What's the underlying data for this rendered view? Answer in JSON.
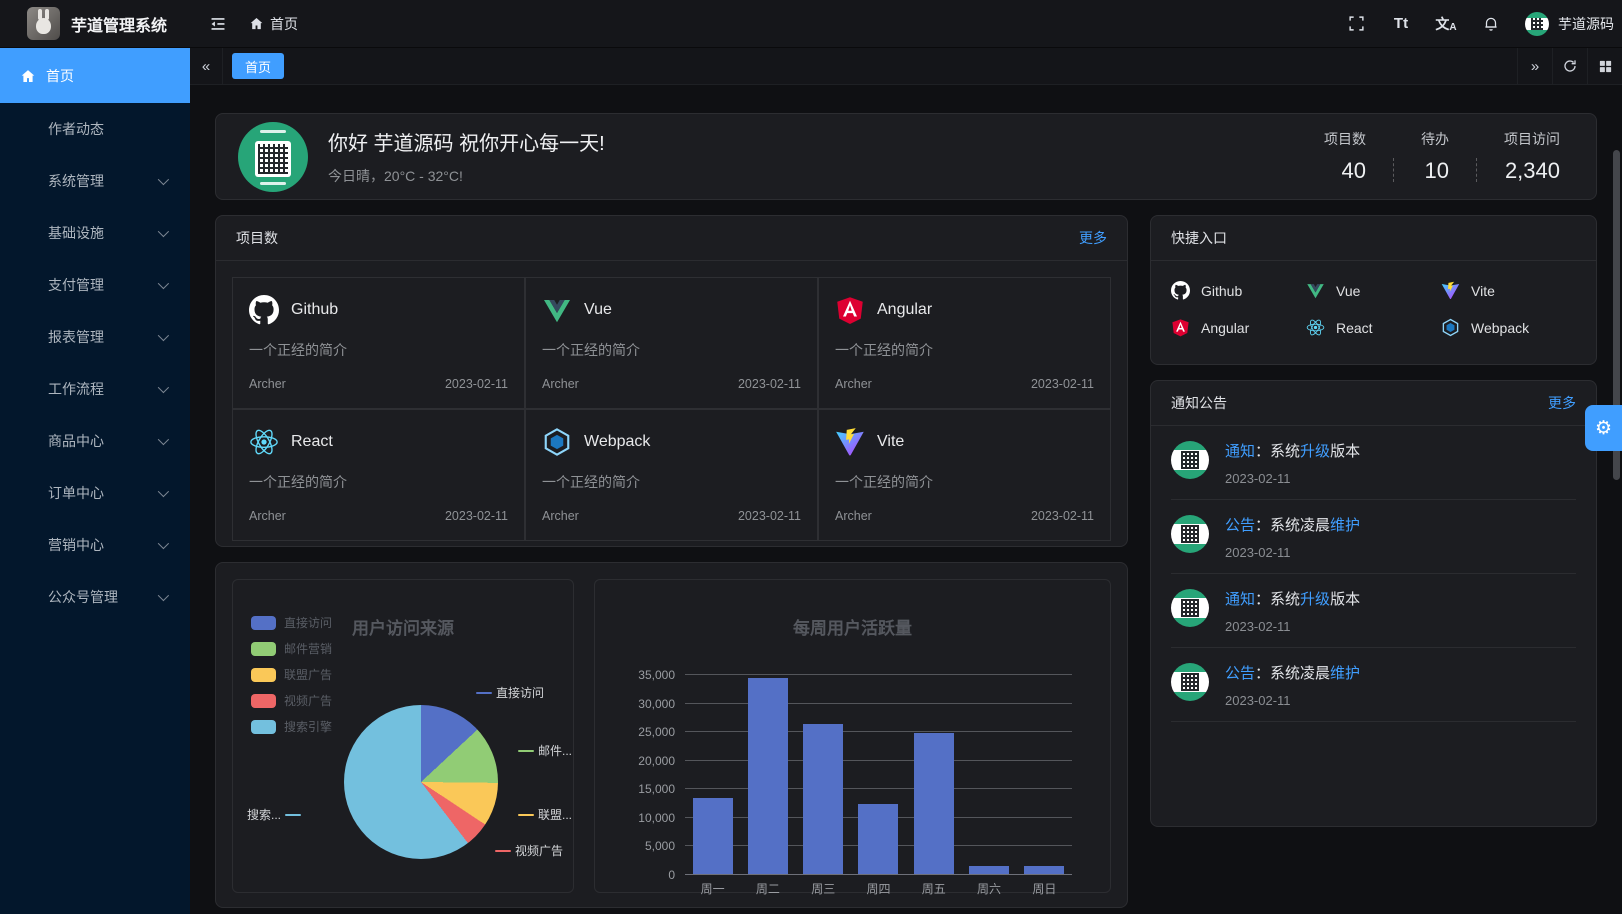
{
  "app": {
    "title": "芋道管理系统",
    "user_name": "芋道源码"
  },
  "topbar": {
    "breadcrumb_home": "首页",
    "icons": [
      "fullscreen-icon",
      "font-size-icon",
      "locale-icon",
      "bell-icon"
    ]
  },
  "tabbar": {
    "tabs": [
      {
        "label": "首页",
        "active": true
      }
    ]
  },
  "sidebar": {
    "items": [
      {
        "label": "首页",
        "icon": "home-icon",
        "active": true,
        "has_arrow": false
      },
      {
        "label": "作者动态",
        "active": false,
        "has_arrow": false
      },
      {
        "label": "系统管理",
        "active": false,
        "has_arrow": true
      },
      {
        "label": "基础设施",
        "active": false,
        "has_arrow": true
      },
      {
        "label": "支付管理",
        "active": false,
        "has_arrow": true
      },
      {
        "label": "报表管理",
        "active": false,
        "has_arrow": true
      },
      {
        "label": "工作流程",
        "active": false,
        "has_arrow": true
      },
      {
        "label": "商品中心",
        "active": false,
        "has_arrow": true
      },
      {
        "label": "订单中心",
        "active": false,
        "has_arrow": true
      },
      {
        "label": "营销中心",
        "active": false,
        "has_arrow": true
      },
      {
        "label": "公众号管理",
        "active": false,
        "has_arrow": true
      }
    ]
  },
  "welcome": {
    "greeting": "你好 芋道源码 祝你开心每一天!",
    "subtitle": "今日晴，20°C - 32°C!",
    "stats": [
      {
        "label": "项目数",
        "value": "40"
      },
      {
        "label": "待办",
        "value": "10"
      },
      {
        "label": "项目访问",
        "value": "2,340"
      }
    ]
  },
  "projects": {
    "title": "项目数",
    "more_label": "更多",
    "items": [
      {
        "name": "Github",
        "icon": "github-icon",
        "desc": "一个正经的简介",
        "author": "Archer",
        "date": "2023-02-11"
      },
      {
        "name": "Vue",
        "icon": "vue-icon",
        "desc": "一个正经的简介",
        "author": "Archer",
        "date": "2023-02-11"
      },
      {
        "name": "Angular",
        "icon": "angular-icon",
        "desc": "一个正经的简介",
        "author": "Archer",
        "date": "2023-02-11"
      },
      {
        "name": "React",
        "icon": "react-icon",
        "desc": "一个正经的简介",
        "author": "Archer",
        "date": "2023-02-11"
      },
      {
        "name": "Webpack",
        "icon": "webpack-icon",
        "desc": "一个正经的简介",
        "author": "Archer",
        "date": "2023-02-11"
      },
      {
        "name": "Vite",
        "icon": "vite-icon",
        "desc": "一个正经的简介",
        "author": "Archer",
        "date": "2023-02-11"
      }
    ]
  },
  "quick_entry": {
    "title": "快捷入口",
    "items": [
      {
        "name": "Github",
        "icon": "github-icon"
      },
      {
        "name": "Vue",
        "icon": "vue-icon"
      },
      {
        "name": "Vite",
        "icon": "vite-icon"
      },
      {
        "name": "Angular",
        "icon": "angular-icon"
      },
      {
        "name": "React",
        "icon": "react-icon"
      },
      {
        "name": "Webpack",
        "icon": "webpack-icon"
      }
    ]
  },
  "notices": {
    "title": "通知公告",
    "more_label": "更多",
    "items": [
      {
        "segments": [
          {
            "t": "通知",
            "blue": true
          },
          {
            "t": "：",
            "blue": false
          },
          {
            "t": "系统",
            "blue": false
          },
          {
            "t": "升级",
            "blue": true
          },
          {
            "t": "版本",
            "blue": false
          }
        ],
        "date": "2023-02-11"
      },
      {
        "segments": [
          {
            "t": "公告",
            "blue": true
          },
          {
            "t": "：",
            "blue": false
          },
          {
            "t": "系统凌晨",
            "blue": false
          },
          {
            "t": "维护",
            "blue": true
          }
        ],
        "date": "2023-02-11"
      },
      {
        "segments": [
          {
            "t": "通知",
            "blue": true
          },
          {
            "t": "：",
            "blue": false
          },
          {
            "t": "系统",
            "blue": false
          },
          {
            "t": "升级",
            "blue": true
          },
          {
            "t": "版本",
            "blue": false
          }
        ],
        "date": "2023-02-11"
      },
      {
        "segments": [
          {
            "t": "公告",
            "blue": true
          },
          {
            "t": "：",
            "blue": false
          },
          {
            "t": "系统凌晨",
            "blue": false
          },
          {
            "t": "维护",
            "blue": true
          }
        ],
        "date": "2023-02-11"
      }
    ]
  },
  "theme": {
    "primary_blue": "#409eff",
    "sidebar_bg": "#03172c",
    "card_bg": "#1c1d21",
    "page_bg": "#0f1013",
    "avatar_green": "#27a578"
  },
  "chart_data": [
    {
      "type": "pie",
      "title": "用户访问来源",
      "legend_position": "left",
      "labels": [
        "直接访问",
        "邮件营销",
        "联盟广告",
        "视频广告",
        "搜索引擎"
      ],
      "values": [
        335,
        310,
        234,
        135,
        1548
      ],
      "percents": [
        13.1,
        12.1,
        9.1,
        5.3,
        60.4
      ],
      "colors": [
        "#5470c6",
        "#91cc75",
        "#fac858",
        "#ee6666",
        "#73c0de"
      ],
      "callout_labels": [
        "直接访问",
        "邮件...",
        "联盟...",
        "视频广告",
        "搜索..."
      ]
    },
    {
      "type": "bar",
      "title": "每周用户活跃量",
      "categories": [
        "周一",
        "周二",
        "周三",
        "周四",
        "周五",
        "周六",
        "周日"
      ],
      "values": [
        13253,
        34235,
        26321,
        12340,
        24643,
        1322,
        1324
      ],
      "ylim": [
        0,
        35000
      ],
      "ytick_step": 5000,
      "bar_color": "#5470c6",
      "grid": true
    }
  ]
}
